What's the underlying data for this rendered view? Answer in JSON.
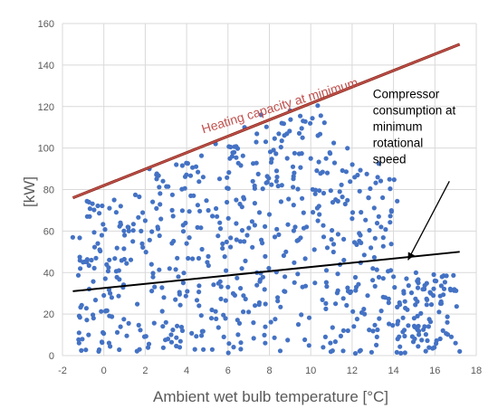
{
  "chart_data": {
    "type": "scatter",
    "xlabel": "Ambient wet bulb temperature [°C]",
    "ylabel": "[kW]",
    "xlim": [
      -2,
      18
    ],
    "ylim": [
      0,
      160
    ],
    "x_ticks": [
      "-2",
      "0",
      "2",
      "4",
      "6",
      "8",
      "10",
      "12",
      "14",
      "16",
      "18"
    ],
    "y_ticks": [
      "0",
      "20",
      "40",
      "60",
      "80",
      "100",
      "120",
      "140",
      "160"
    ],
    "grid": "vertical-and-horizontal",
    "colors": {
      "points": "#4472c4",
      "heating_line": "#c0504d",
      "heating_edge": "#8b2a1a",
      "compressor_line": "#000000",
      "grid": "#d9d9d9",
      "ticks": "#595959"
    },
    "lines": [
      {
        "name": "Heating capacity at minimum",
        "x": [
          -1.5,
          17.2
        ],
        "y": [
          76,
          150
        ]
      },
      {
        "name": "Compressor consumption at minimum rotational speed",
        "x": [
          -1.5,
          17.2
        ],
        "y": [
          31,
          50
        ]
      }
    ],
    "annotations": [
      {
        "text": "Heating capacity at minimum",
        "x": 4.8,
        "y": 107,
        "angle_deg": -17
      },
      {
        "text_lines": [
          "Compressor",
          "consumption at",
          "minimum",
          "rotational",
          "speed"
        ],
        "x": 13.0,
        "y": 124,
        "arrow_from": [
          16.7,
          84
        ],
        "arrow_to": [
          14.7,
          46
        ]
      }
    ],
    "points_sample": [
      [
        -1.5,
        57
      ],
      [
        -1.2,
        6
      ],
      [
        -1.2,
        11
      ],
      [
        -1.0,
        45
      ],
      [
        -0.8,
        67
      ],
      [
        -0.6,
        46
      ],
      [
        -0.5,
        18
      ],
      [
        -0.2,
        51
      ],
      [
        -0.1,
        58
      ],
      [
        0.0,
        29
      ],
      [
        0.3,
        30
      ],
      [
        0.5,
        75
      ],
      [
        0.6,
        69
      ],
      [
        0.8,
        64
      ],
      [
        1.0,
        58
      ],
      [
        1.4,
        55
      ],
      [
        1.8,
        60
      ],
      [
        2.0,
        65
      ],
      [
        2.2,
        90
      ],
      [
        2.3,
        44
      ],
      [
        2.6,
        62
      ],
      [
        2.9,
        28
      ],
      [
        3.0,
        16
      ],
      [
        3.1,
        8
      ],
      [
        3.3,
        70
      ],
      [
        3.5,
        92
      ],
      [
        3.6,
        38
      ],
      [
        3.8,
        12
      ],
      [
        4.0,
        54
      ],
      [
        4.2,
        77
      ],
      [
        4.4,
        3
      ],
      [
        4.6,
        24
      ],
      [
        4.8,
        86
      ],
      [
        5.0,
        45
      ],
      [
        5.2,
        18
      ],
      [
        5.4,
        102
      ],
      [
        5.6,
        64
      ],
      [
        5.8,
        9
      ],
      [
        6.0,
        33
      ],
      [
        6.2,
        96
      ],
      [
        6.4,
        75
      ],
      [
        6.6,
        55
      ],
      [
        6.8,
        110
      ],
      [
        7.0,
        21
      ],
      [
        7.2,
        84
      ],
      [
        7.4,
        40
      ],
      [
        7.6,
        116
      ],
      [
        7.8,
        6
      ],
      [
        8.0,
        68
      ],
      [
        8.2,
        99
      ],
      [
        8.4,
        28
      ],
      [
        8.6,
        112
      ],
      [
        8.8,
        50
      ],
      [
        9.0,
        118
      ],
      [
        9.2,
        88
      ],
      [
        9.4,
        15
      ],
      [
        9.6,
        105
      ],
      [
        9.8,
        62
      ],
      [
        10.0,
        95
      ],
      [
        10.2,
        35
      ],
      [
        10.4,
        72
      ],
      [
        10.6,
        4
      ],
      [
        10.8,
        88
      ],
      [
        11.0,
        56
      ],
      [
        11.2,
        25
      ],
      [
        11.4,
        79
      ],
      [
        11.6,
        46
      ],
      [
        11.8,
        12
      ],
      [
        12.0,
        66
      ],
      [
        12.2,
        33
      ],
      [
        12.4,
        58
      ],
      [
        12.6,
        20
      ],
      [
        12.8,
        76
      ],
      [
        13.0,
        42
      ],
      [
        13.2,
        9
      ],
      [
        13.4,
        62
      ],
      [
        13.6,
        28
      ],
      [
        14.0,
        38
      ],
      [
        14.2,
        8
      ],
      [
        14.5,
        30
      ],
      [
        15.0,
        18
      ],
      [
        15.2,
        35
      ],
      [
        15.5,
        14
      ],
      [
        15.8,
        30
      ],
      [
        16.0,
        36
      ],
      [
        16.3,
        26
      ],
      [
        16.6,
        16
      ],
      [
        17.0,
        6
      ],
      [
        17.2,
        2
      ]
    ]
  }
}
